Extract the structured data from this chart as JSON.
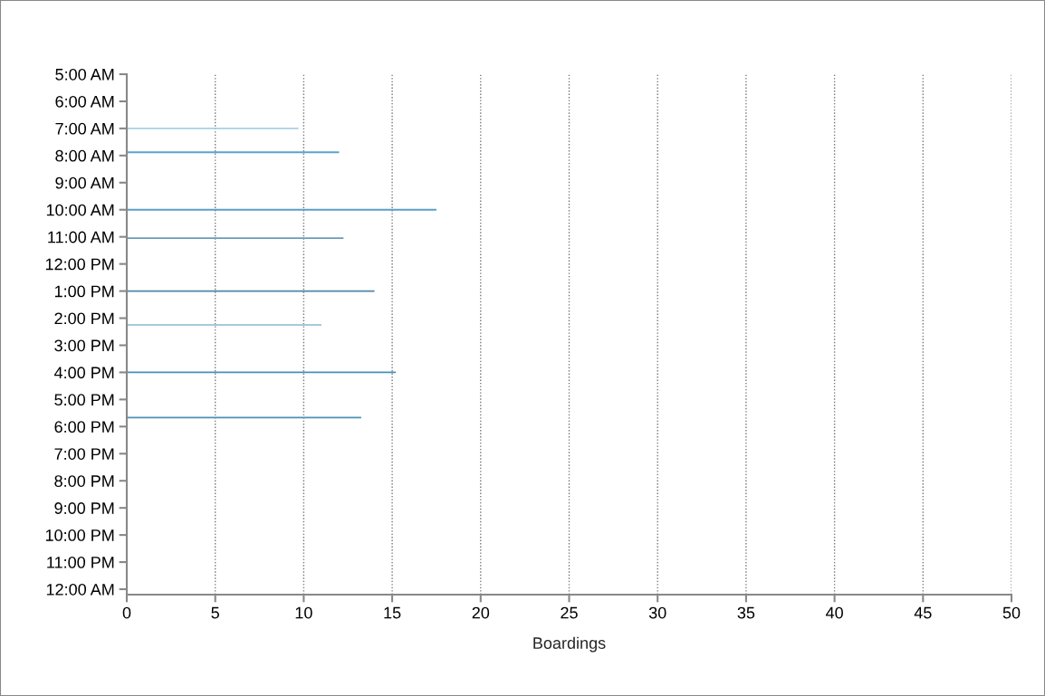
{
  "chart_data": {
    "type": "bar",
    "orientation": "horizontal",
    "xlabel": "Boardings",
    "x": [
      7,
      7.88,
      10,
      11.05,
      13,
      14.25,
      16,
      17.67
    ],
    "values": [
      9.7,
      12.0,
      17.5,
      12.25,
      14.0,
      11.0,
      15.2,
      13.25
    ],
    "colors": [
      "#a9cfe6",
      "#5ba3cc",
      "#5a9fc8",
      "#6b9cb8",
      "#4f86a8",
      "#a8c8d8",
      "#4a90b8",
      "#4a90b8"
    ],
    "xlim": [
      0,
      50
    ],
    "xticks": [
      0,
      5,
      10,
      15,
      20,
      25,
      30,
      35,
      40,
      45,
      50
    ],
    "ylim": [
      24.2,
      5
    ],
    "yticks": [
      {
        "value": 5,
        "label": "5:00 AM"
      },
      {
        "value": 6,
        "label": "6:00 AM"
      },
      {
        "value": 7,
        "label": "7:00 AM"
      },
      {
        "value": 8,
        "label": "8:00 AM"
      },
      {
        "value": 9,
        "label": "9:00 AM"
      },
      {
        "value": 10,
        "label": "10:00 AM"
      },
      {
        "value": 11,
        "label": "11:00 AM"
      },
      {
        "value": 12,
        "label": "12:00 PM"
      },
      {
        "value": 13,
        "label": "1:00 PM"
      },
      {
        "value": 14,
        "label": "2:00 PM"
      },
      {
        "value": 15,
        "label": "3:00 PM"
      },
      {
        "value": 16,
        "label": "4:00 PM"
      },
      {
        "value": 17,
        "label": "5:00 PM"
      },
      {
        "value": 18,
        "label": "6:00 PM"
      },
      {
        "value": 19,
        "label": "7:00 PM"
      },
      {
        "value": 20,
        "label": "8:00 PM"
      },
      {
        "value": 21,
        "label": "9:00 PM"
      },
      {
        "value": 22,
        "label": "10:00 PM"
      },
      {
        "value": 23,
        "label": "11:00 PM"
      },
      {
        "value": 24,
        "label": "12:00 AM"
      }
    ],
    "grid": "x",
    "legend": false
  }
}
